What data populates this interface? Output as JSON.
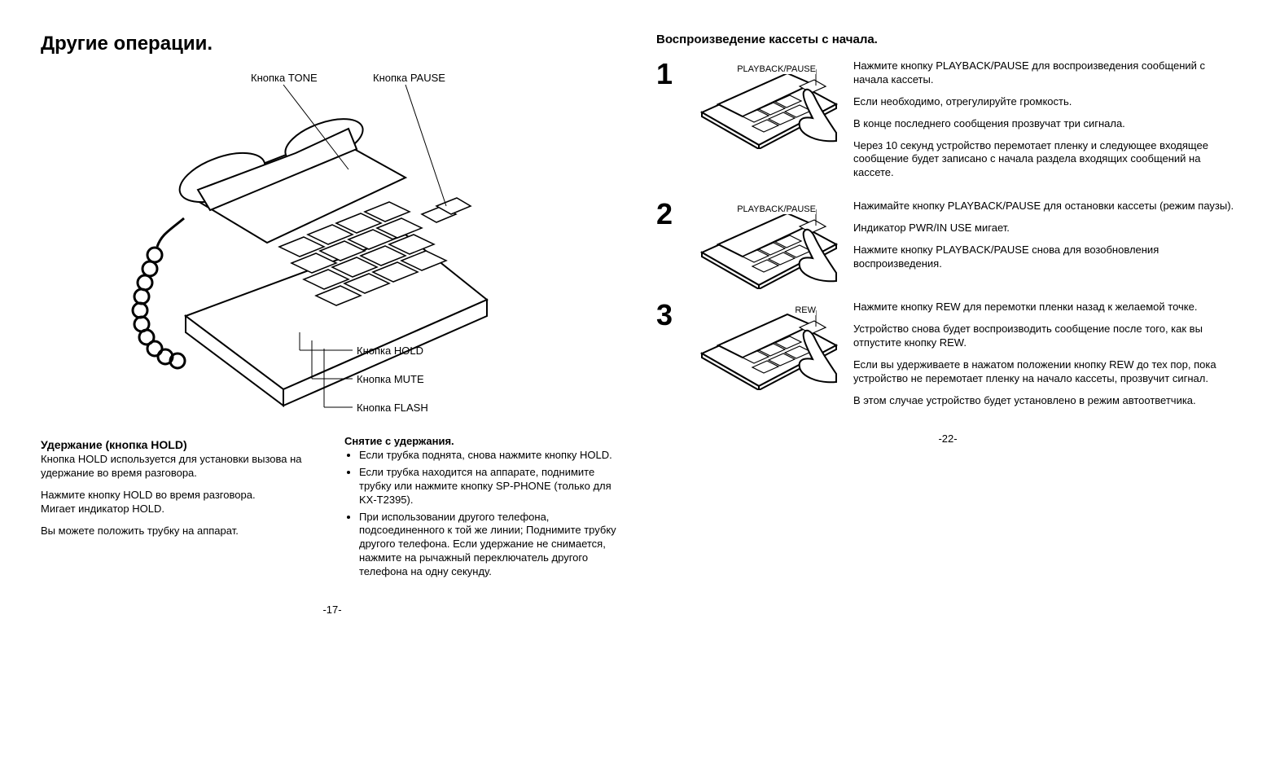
{
  "left": {
    "heading": "Другие операции.",
    "callouts": {
      "tone": "Кнопка TONE",
      "pause": "Кнопка PAUSE",
      "hold": "Кнопка HOLD",
      "mute": "Кнопка MUTE",
      "flash": "Кнопка FLASH"
    },
    "hold": {
      "title": "Удержание (кнопка HOLD)",
      "p1": "Кнопка HOLD используется для установки вызова на удержание во время разговора.",
      "p2": "Нажмите кнопку HOLD во время разговора.",
      "p3": "Мигает индикатор HOLD.",
      "p4": "Вы можете положить трубку на аппарат."
    },
    "release": {
      "title": "Снятие с удержания.",
      "b1": "Если трубка поднята, снова нажмите кнопку HOLD.",
      "b2": "Если трубка находится на аппарате, поднимите трубку или нажмите кнопку SP-PHONE (только для KX-T2395).",
      "b3": "При использовании другого телефона, подсоединенного к той же линии; Поднимите трубку другого телефона. Если удержание не снимается, нажмите на рычажный переключатель другого телефона на одну секунду."
    },
    "pagenum": "-17-"
  },
  "right": {
    "heading": "Воспроизведение кассеты с начала.",
    "steps": [
      {
        "num": "1",
        "button_label": "PLAYBACK/PAUSE",
        "paras": [
          "Нажмите кнопку PLAYBACK/PAUSE для воспроизведения сообщений с начала кассеты.",
          "Если необходимо, отрегулируйте громкость.",
          "В конце последнего сообщения прозвучат три сигнала.",
          "Через 10 секунд устройство перемотает пленку и следующее входящее сообщение будет записано с начала раздела входящих сообщений на кассете."
        ]
      },
      {
        "num": "2",
        "button_label": "PLAYBACK/PAUSE",
        "paras": [
          "Нажимайте кнопку PLAYBACK/PAUSE для остановки кассеты (режим паузы).",
          "Индикатор PWR/IN USE мигает.",
          "Нажмите кнопку PLAYBACK/PAUSE снова для возобновления воспроизведения."
        ]
      },
      {
        "num": "3",
        "button_label": "REW",
        "paras": [
          "Нажмите кнопку REW для перемотки пленки назад к желаемой точке.",
          "Устройство снова будет воспроизводить сообщение после того, как вы отпустите кнопку REW.",
          "Если вы удерживаете в нажатом положении кнопку REW до тех пор, пока устройство не перемотает пленку на начало кассеты, прозвучит сигнал.",
          "В этом случае устройство будет установлено в режим автоответчика."
        ]
      }
    ],
    "pagenum": "-22-"
  }
}
